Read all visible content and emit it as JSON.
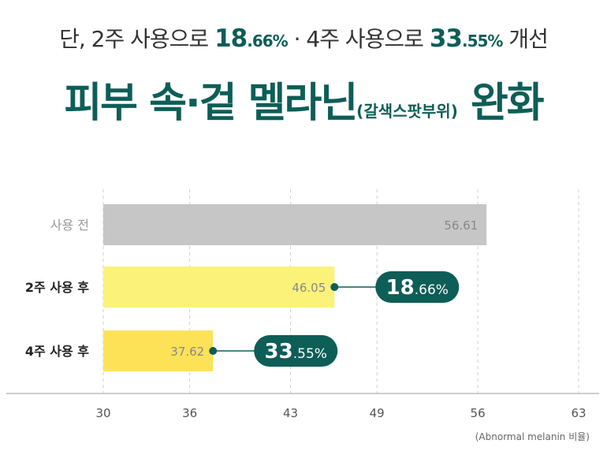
{
  "header": {
    "subtitle": {
      "lead": "단, 2주 사용으로",
      "val1": "18",
      "val1_pct": ".66%",
      "sep": "· 4주 사용으로",
      "val2": "33",
      "val2_pct": ".55%",
      "tail": "개선"
    },
    "title": {
      "main": "피부 속·겉 멜라닌",
      "paren": "(갈색스팟부위)",
      "tail": "완화"
    }
  },
  "footnote": "(Abnormal melanin 비율)",
  "colors": {
    "accent": "#0d5e57",
    "bar_before": "#c6c6c6",
    "bar_2w": "#fbf279",
    "bar_4w": "#fde257"
  },
  "chart_data": {
    "type": "bar",
    "orientation": "horizontal",
    "categories": [
      "사용 전",
      "2주 사용 후",
      "4주 사용 후"
    ],
    "values": [
      56.61,
      46.05,
      37.62
    ],
    "value_labels": [
      "56.61",
      "46.05",
      "37.62"
    ],
    "xlim": [
      30,
      63
    ],
    "xticks": [
      30,
      36,
      43,
      49,
      56,
      63
    ],
    "xtick_labels": [
      "30",
      "36",
      "43",
      "49",
      "56",
      "63"
    ],
    "xlabel": "(Abnormal melanin 비율)",
    "grid": "vertical dashed",
    "annotations": [
      {
        "category": "2주 사용 후",
        "big": "18",
        "small": ".66%"
      },
      {
        "category": "4주 사용 후",
        "big": "33",
        "small": ".55%"
      }
    ]
  }
}
